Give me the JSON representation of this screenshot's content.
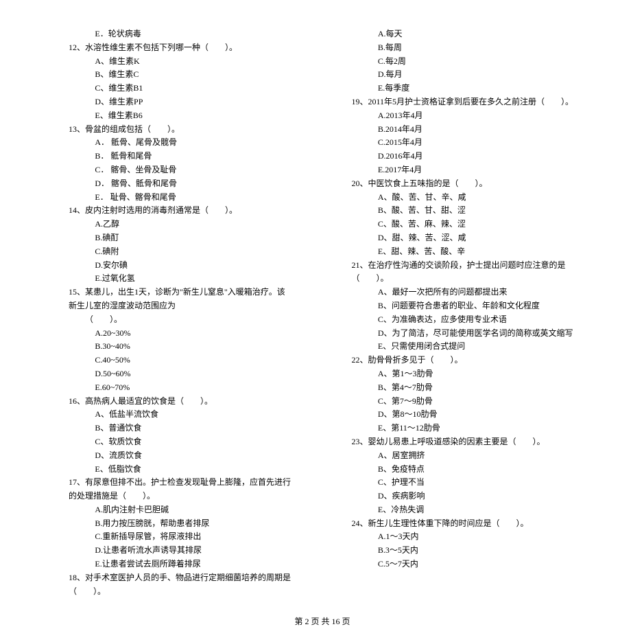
{
  "left": {
    "q11_optE": "E．轮状病毒",
    "q12": {
      "stem": "12、水溶性维生素不包括下列哪一种（　　）。",
      "A": "A、维生素K",
      "B": "B、维生素C",
      "C": "C、维生素B1",
      "D": "D、维生素PP",
      "E": "E、维生素B6"
    },
    "q13": {
      "stem": "13、骨盆的组成包括（　　）。",
      "A": "A． 骶骨、尾骨及髋骨",
      "B": "B． 骶骨和尾骨",
      "C": "C． 髂骨、坐骨及耻骨",
      "D": "D． 髂骨、骶骨和尾骨",
      "E": "E． 耻骨、髂骨和尾骨"
    },
    "q14": {
      "stem": "14、皮内注射时选用的消毒剂通常是（　　）。",
      "A": "A.乙醇",
      "B": "B.碘酊",
      "C": "C.碘附",
      "D": "D.安尔碘",
      "E": "E.过氧化氢"
    },
    "q15": {
      "stem": "15、某患儿，出生1天，诊断为\"新生儿窒息\"入暖箱治疗。该新生儿室的湿度波动范围应为",
      "cont": "（　　）。",
      "A": "A.20~30%",
      "B": "B.30~40%",
      "C": "C.40~50%",
      "D": "D.50~60%",
      "E": "E.60~70%"
    },
    "q16": {
      "stem": "16、高热病人最适宜的饮食是（　　）。",
      "A": "A、低盐半流饮食",
      "B": "B、普通饮食",
      "C": "C、软质饮食",
      "D": "D、流质饮食",
      "E": "E、低脂饮食"
    },
    "q17": {
      "stem": "17、有尿意但排不出。护士检查发现耻骨上膨隆，应首先进行的处理措施是（　　）。",
      "A": "A.肌内注射卡巴胆碱",
      "B": "B.用力按压膀胱，帮助患者排尿",
      "C": "C.重新插导尿管，将尿液排出",
      "D": "D.让患者听流水声诱导其排尿",
      "E": "E.让患者尝试去厕所蹲着排尿"
    },
    "q18": {
      "stem": "18、对手术室医护人员的手、物品进行定期细菌培养的周期是（　　）。"
    }
  },
  "right": {
    "q18_opts": {
      "A": "A.每天",
      "B": "B.每周",
      "C": "C.每2周",
      "D": "D.每月",
      "E": "E.每季度"
    },
    "q19": {
      "stem": "19、2011年5月护士资格证拿到后要在多久之前注册（　　）。",
      "A": "A.2013年4月",
      "B": "B.2014年4月",
      "C": "C.2015年4月",
      "D": "D.2016年4月",
      "E": "E.2017年4月"
    },
    "q20": {
      "stem": "20、中医饮食上五味指的是（　　）。",
      "A": "A、酸、苦、甘、辛、咸",
      "B": "B、酸、苦、甘、甜、涩",
      "C": "C、酸、苦、麻、辣、涩",
      "D": "D、甜、辣、苦、涩、咸",
      "E": "E、甜、辣、苦、酸、辛"
    },
    "q21": {
      "stem": "21、在治疗性沟通的交谈阶段，护士提出问题时应注意的是（　　）。",
      "A": "A、最好一次把所有的问题都提出来",
      "B": "B、问题要符合患者的职业、年龄和文化程度",
      "C": "C、为准确表达，应多使用专业术语",
      "D": "D、为了简洁，尽可能使用医学名词的简称或英文缩写",
      "E": "E、只需使用闭合式提问"
    },
    "q22": {
      "stem": "22、肋骨骨折多见于（　　）。",
      "A": "A、第1～3肋骨",
      "B": "B、第4～7肋骨",
      "C": "C、第7～9肋骨",
      "D": "D、第8～10肋骨",
      "E": "E、第11～12肋骨"
    },
    "q23": {
      "stem": "23、婴幼儿易患上呼吸道感染的因素主要是（　　）。",
      "A": "A、居室拥挤",
      "B": "B、免疫特点",
      "C": "C、护理不当",
      "D": "D、疾病影响",
      "E": "E、冷热失调"
    },
    "q24": {
      "stem": "24、新生儿生理性体重下降的时间应是（　　）。",
      "A": "A.1～3天内",
      "B": "B.3～5天内",
      "C": "C.5～7天内"
    }
  },
  "footer": "第 2 页 共 16 页"
}
